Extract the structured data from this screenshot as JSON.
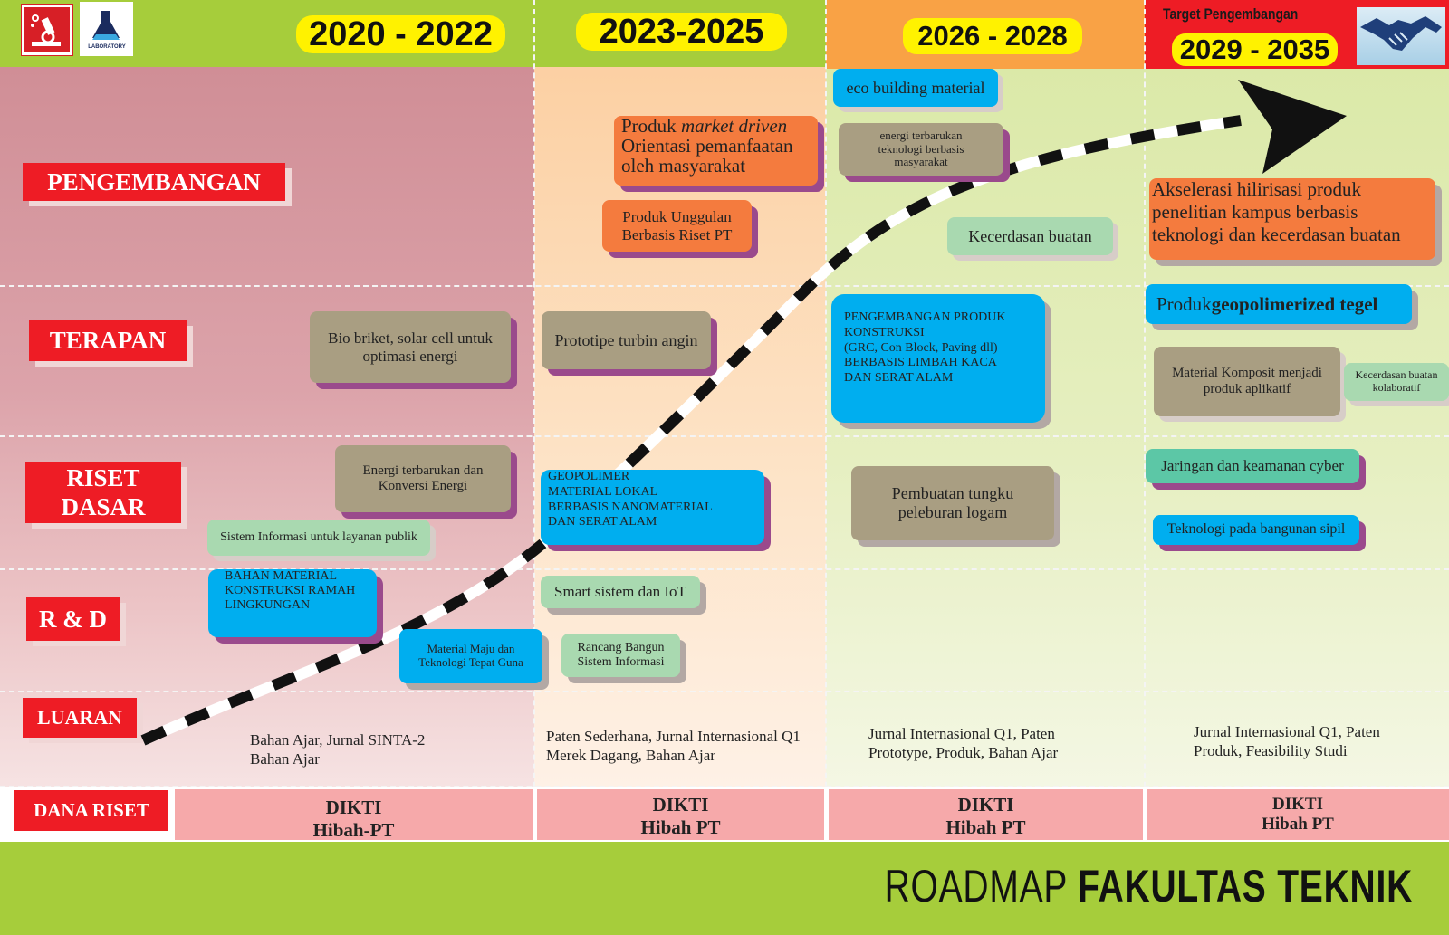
{
  "header": {
    "periods": [
      "2020 - 2022",
      "2023-2025",
      "2026 - 2028",
      "2029 - 2035"
    ],
    "target_label": "Target Pengembangan",
    "logo_text": "LABORATORY"
  },
  "rows": {
    "pengembangan": "PENGEMBANGAN",
    "terapan": "TERAPAN",
    "riset_dasar_1": "RISET",
    "riset_dasar_2": "DASAR",
    "rnd": "R & D",
    "luaran": "LUARAN",
    "dana_riset": "DANA RISET"
  },
  "boxes": {
    "c1_terapan_1": "Bio briket, solar cell untuk",
    "c1_terapan_2": "optimasi energi",
    "c1_riset_1": "Energi terbarukan dan",
    "c1_riset_2": "Konversi Energi",
    "c1_sisinfo": "Sistem Informasi untuk layanan publik",
    "c1_rnd_1": "BAHAN MATERIAL",
    "c1_rnd_2": "KONSTRUKSI RAMAH",
    "c1_rnd_3": "LINGKUNGAN",
    "c1_rnd_b1": "Material Maju dan",
    "c1_rnd_b2": "Teknologi Tepat Guna",
    "c2_peng_1a": "Produk ",
    "c2_peng_1b": "market driven",
    "c2_peng_2": "Orientasi pemanfaatan",
    "c2_peng_3": "oleh masyarakat",
    "c2_unggulan_1": "Produk Unggulan",
    "c2_unggulan_2": "Berbasis Riset PT",
    "c2_terapan": "Prototipe turbin angin",
    "c2_riset_1": "GEOPOLIMER",
    "c2_riset_2": "MATERIAL LOKAL",
    "c2_riset_3": "BERBASIS NANOMATERIAL",
    "c2_riset_4": "DAN SERAT ALAM",
    "c2_smart": "Smart sistem dan IoT",
    "c2_rancang_1": "Rancang Bangun",
    "c2_rancang_2": "Sistem Informasi",
    "c3_eco": "eco building material",
    "c3_energi_1": "energi terbarukan",
    "c3_energi_2": "teknologi berbasis",
    "c3_energi_3": "masyarakat",
    "c3_ai": "Kecerdasan buatan",
    "c3_terapan_1": "PENGEMBANGAN PRODUK",
    "c3_terapan_2": "KONSTRUKSI",
    "c3_terapan_3": "(GRC, Con Block, Paving dll)",
    "c3_terapan_4": "BERBASIS LIMBAH KACA",
    "c3_terapan_5": "DAN SERAT ALAM",
    "c3_tungku_1": "Pembuatan tungku",
    "c3_tungku_2": "peleburan logam",
    "c4_peng_1": "Akselerasi hilirisasi produk",
    "c4_peng_2": "penelitian kampus berbasis",
    "c4_peng_3": "teknologi dan kecerdasan buatan",
    "c4_tegel_a": "Produk ",
    "c4_tegel_b": "geopolimerized tegel",
    "c4_komposit_1": "Material Komposit menjadi",
    "c4_komposit_2": "produk aplikatif",
    "c4_ai_1": "Kecerdasan buatan",
    "c4_ai_2": "kolaboratif",
    "c4_cyber": "Jaringan dan keamanan cyber",
    "c4_sipil": "Teknologi pada bangunan sipil"
  },
  "luaran": {
    "c1_1": "Bahan Ajar, Jurnal SINTA-2",
    "c1_2": "Bahan Ajar",
    "c2_1": "Paten Sederhana, Jurnal Internasional Q1",
    "c2_2": "Merek Dagang, Bahan Ajar",
    "c3_1": "Jurnal Internasional Q1, Paten",
    "c3_2": "Prototype, Produk, Bahan Ajar",
    "c4_1": "Jurnal Internasional Q1, Paten",
    "c4_2": "Produk, Feasibility Studi"
  },
  "dana": {
    "c1_1": "DIKTI",
    "c1_2": "Hibah-PT",
    "c2_1": "DIKTI",
    "c2_2": "Hibah PT",
    "c3_1": "DIKTI",
    "c3_2": "Hibah PT",
    "c4_1": "DIKTI",
    "c4_2": "Hibah PT"
  },
  "footer": {
    "title_light": "ROADMAP",
    "title_bold": "FAKULTAS TEKNIK"
  },
  "colors": {
    "header_green": "#a6cd3b",
    "header_orange": "#f9a245",
    "header_red": "#ee1c25",
    "period_badge": "#fff200",
    "row_label": "#ee1c25",
    "box_orange": "#f47b3e",
    "box_blue": "#00aeef",
    "box_olive": "#a99e82",
    "box_mint": "#a9d9b0",
    "box_teal": "#5cc7a6",
    "dana_pink": "#f6a9aa"
  },
  "icons": [
    "microscope-icon",
    "flask-icon",
    "handshake-icon",
    "arrow-icon"
  ]
}
